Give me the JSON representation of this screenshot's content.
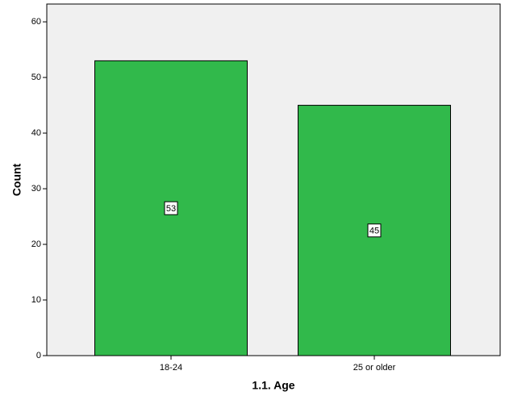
{
  "chart_data": {
    "type": "bar",
    "x_label": "1.1. Age",
    "y_label": "Count",
    "categories": [
      "18-24",
      "25 or older"
    ],
    "values": [
      53,
      45
    ],
    "color": "#31b94b",
    "ylim": [
      0,
      63.2
    ],
    "yticks": [
      0,
      10,
      20,
      30,
      40,
      50,
      60
    ]
  }
}
